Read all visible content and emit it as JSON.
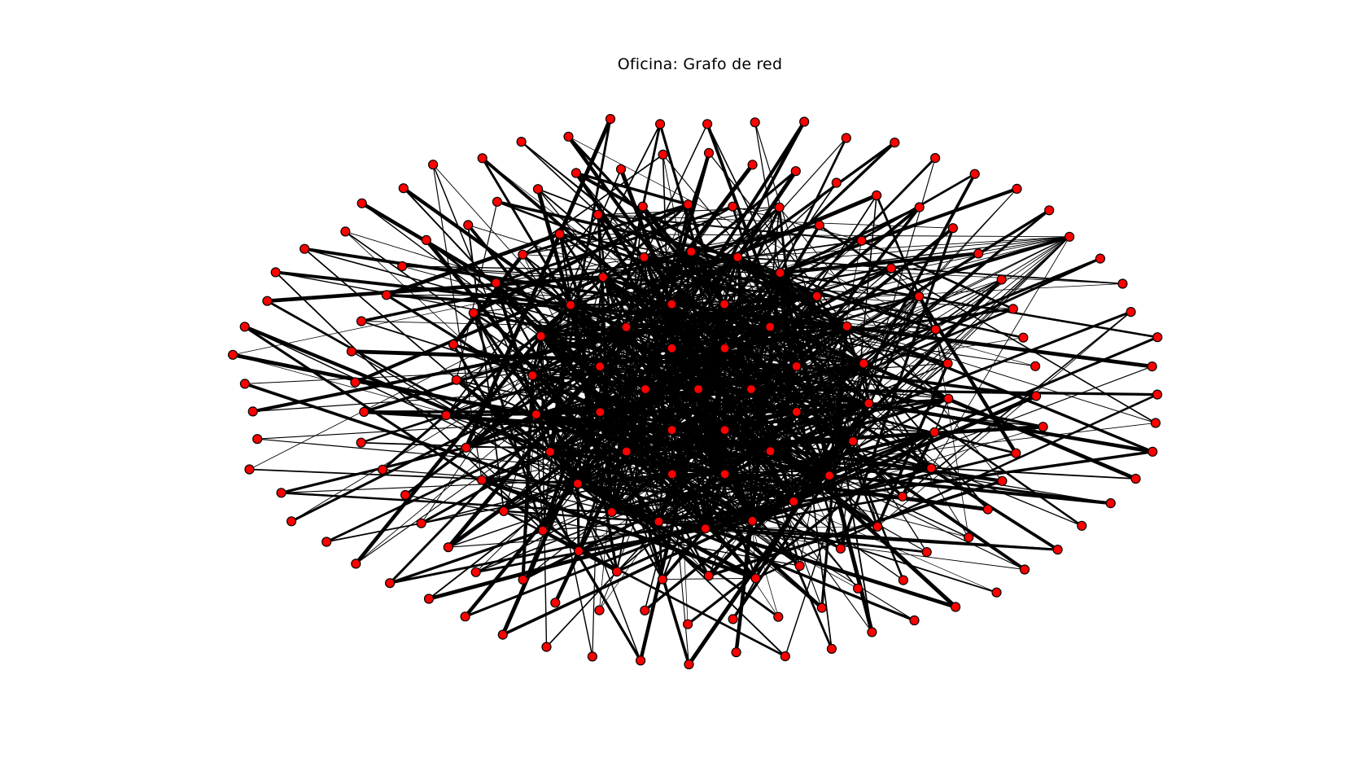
{
  "figure": {
    "title": "Oficina: Grafo de red"
  },
  "colors": {
    "background": "#ffffff",
    "node_fill": "#ff0000",
    "node_stroke": "#000000",
    "edge": "#000000",
    "title": "#000000"
  },
  "graph": {
    "layout": "spring",
    "node_shape": "circle"
  }
}
